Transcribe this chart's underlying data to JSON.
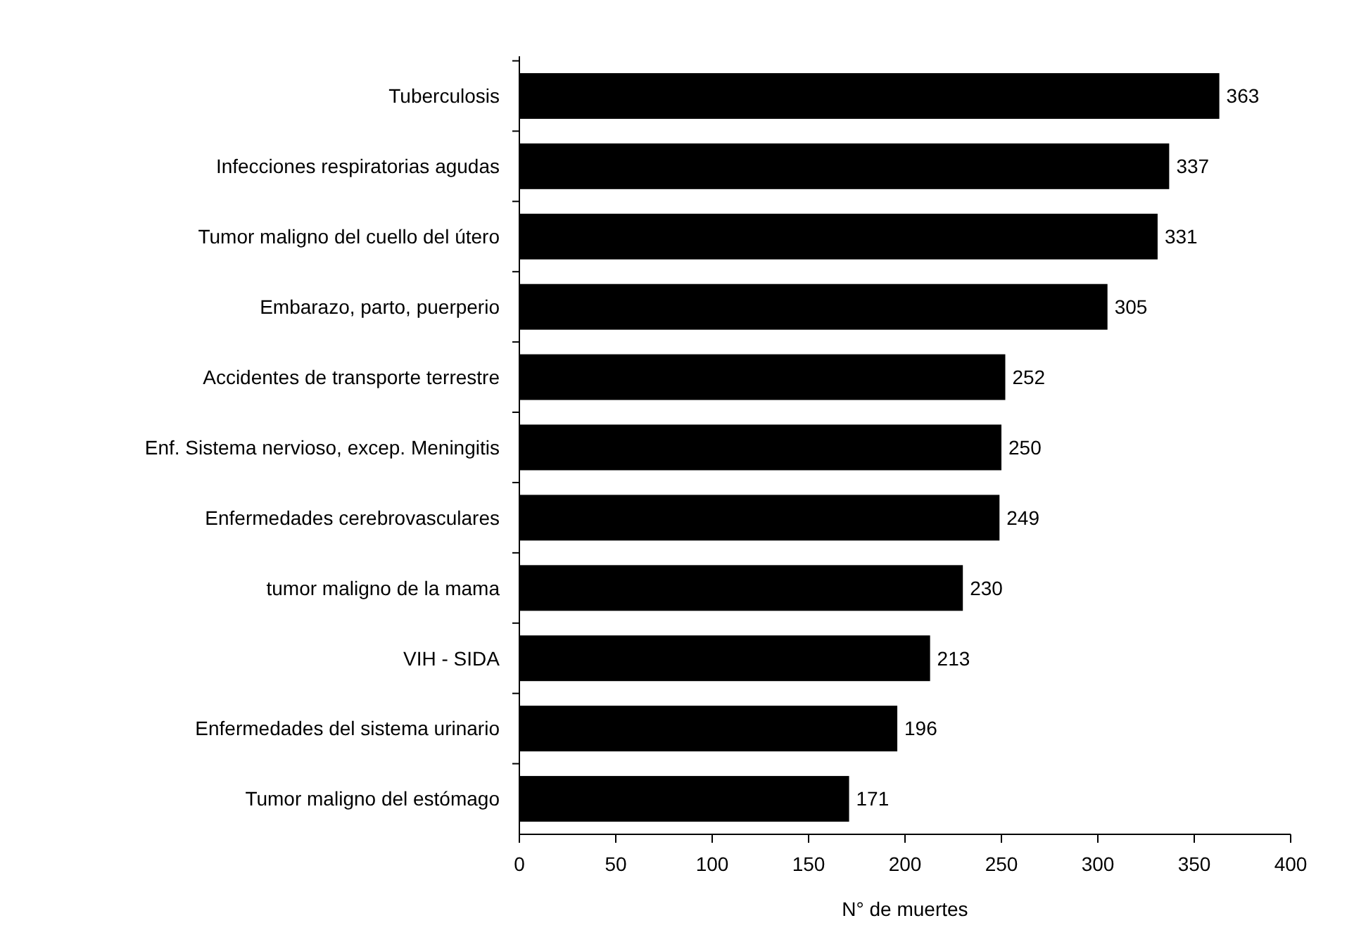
{
  "chart_data": {
    "type": "bar",
    "orientation": "horizontal",
    "xlabel": "N° de muertes",
    "categories": [
      "Tuberculosis",
      "Infecciones respiratorias agudas",
      "Tumor maligno del cuello del útero",
      "Embarazo, parto, puerperio",
      "Accidentes de transporte terrestre",
      "Enf. Sistema nervioso, excep. Meningitis",
      "Enfermedades cerebrovasculares",
      "tumor maligno de la mama",
      "VIH - SIDA",
      "Enfermedades del sistema urinario",
      "Tumor maligno del estómago"
    ],
    "values": [
      363,
      337,
      331,
      305,
      252,
      250,
      249,
      230,
      213,
      196,
      171
    ],
    "color": "#000000",
    "xlim": [
      0,
      400
    ],
    "xticks": [
      0,
      50,
      100,
      150,
      200,
      250,
      300,
      350,
      400
    ],
    "data_labels": true,
    "grid": false
  }
}
